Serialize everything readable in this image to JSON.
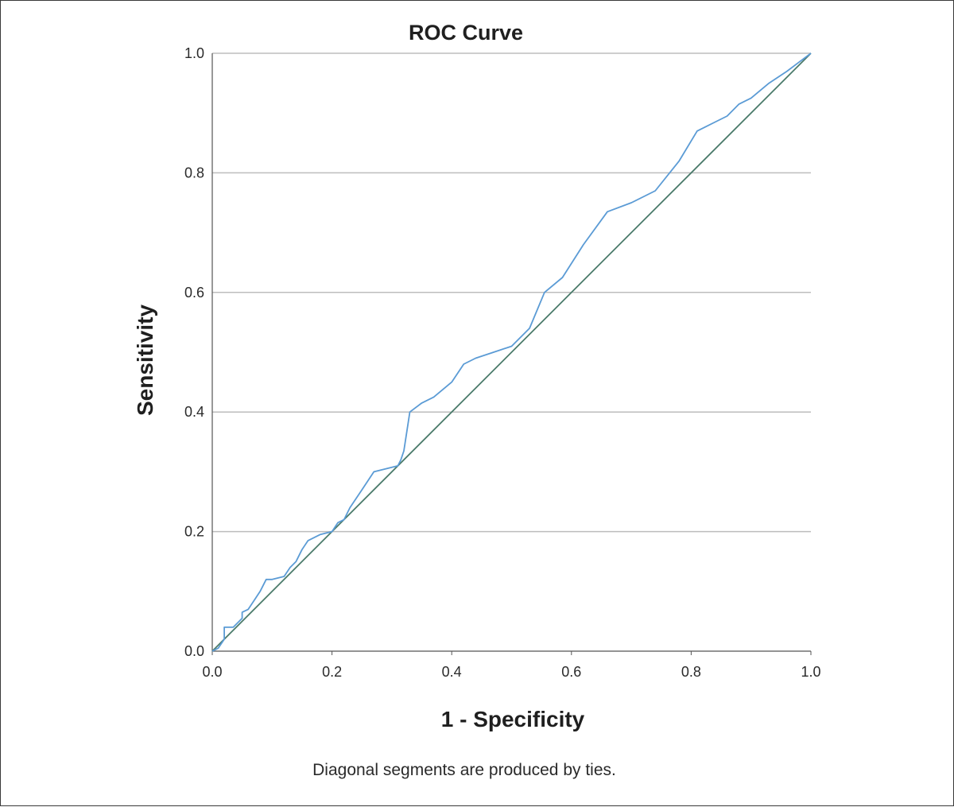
{
  "chart_data": {
    "type": "line",
    "title": "ROC Curve",
    "xlabel": "1 - Specificity",
    "ylabel": "Sensitivity",
    "footnote": "Diagonal segments are produced by ties.",
    "xlim": [
      0.0,
      1.0
    ],
    "ylim": [
      0.0,
      1.0
    ],
    "x_ticks": [
      "0.0",
      "0.2",
      "0.4",
      "0.6",
      "0.8",
      "1.0"
    ],
    "y_ticks": [
      "0.0",
      "0.2",
      "0.4",
      "0.6",
      "0.8",
      "1.0"
    ],
    "grid": "horizontal",
    "colors": {
      "roc_curve": "#5b9bd5",
      "reference_line": "#4a7a6a",
      "gridline": "#bdbdbd",
      "axis": "#555555"
    },
    "series": [
      {
        "x": [
          0.0,
          0.01,
          0.02,
          0.02,
          0.035,
          0.045,
          0.05,
          0.05,
          0.06,
          0.07,
          0.08,
          0.09,
          0.1,
          0.12,
          0.13,
          0.14,
          0.15,
          0.16,
          0.18,
          0.2,
          0.21,
          0.22,
          0.23,
          0.25,
          0.27,
          0.29,
          0.31,
          0.315,
          0.32,
          0.33,
          0.35,
          0.37,
          0.4,
          0.42,
          0.44,
          0.47,
          0.5,
          0.53,
          0.555,
          0.585,
          0.62,
          0.66,
          0.7,
          0.74,
          0.78,
          0.81,
          0.84,
          0.86,
          0.88,
          0.9,
          0.93,
          0.96,
          0.98,
          1.0
        ],
        "y": [
          0.0,
          0.005,
          0.02,
          0.04,
          0.04,
          0.05,
          0.055,
          0.065,
          0.07,
          0.085,
          0.1,
          0.12,
          0.12,
          0.125,
          0.14,
          0.15,
          0.17,
          0.185,
          0.195,
          0.2,
          0.215,
          0.22,
          0.24,
          0.27,
          0.3,
          0.305,
          0.31,
          0.32,
          0.335,
          0.4,
          0.415,
          0.425,
          0.45,
          0.48,
          0.49,
          0.5,
          0.51,
          0.54,
          0.6,
          0.625,
          0.68,
          0.735,
          0.75,
          0.77,
          0.82,
          0.87,
          0.885,
          0.895,
          0.915,
          0.925,
          0.95,
          0.97,
          0.985,
          1.0
        ]
      },
      {
        "x": [
          0.0,
          1.0
        ],
        "y": [
          0.0,
          1.0
        ]
      }
    ]
  }
}
